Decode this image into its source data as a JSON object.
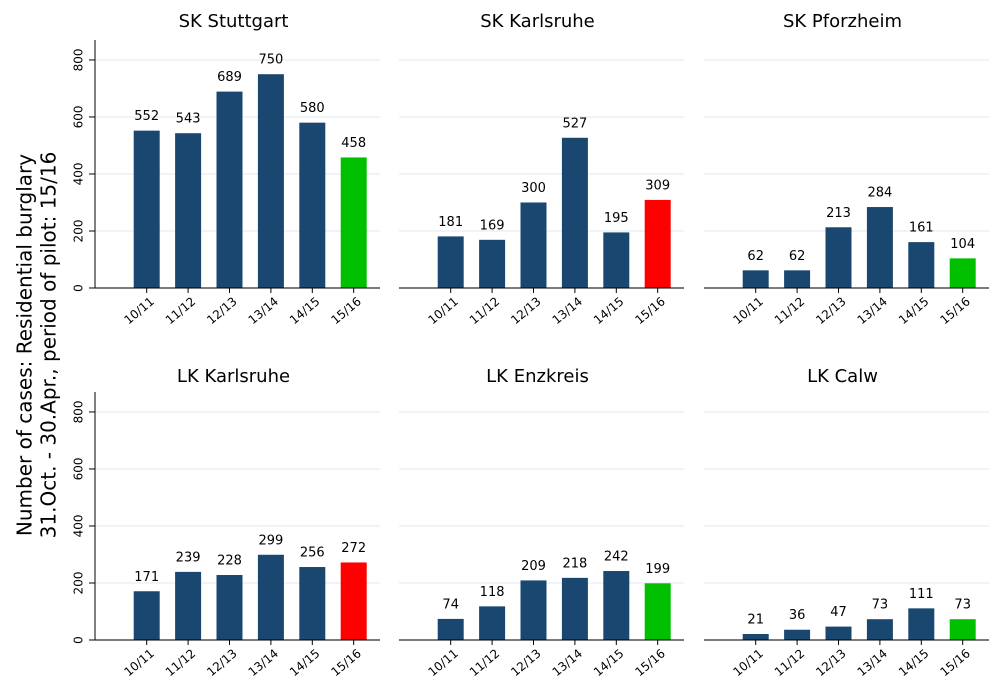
{
  "y_label": [
    "Number of cases: Residential burglary",
    "31.Oct. - 30.Apr., period of pilot: 15/16"
  ],
  "chart_data": [
    {
      "type": "bar",
      "title": "SK Stuttgart",
      "categories": [
        "10/11",
        "11/12",
        "12/13",
        "13/14",
        "14/15",
        "15/16"
      ],
      "values": [
        552,
        543,
        689,
        750,
        580,
        458
      ],
      "colors": [
        "#1a476f",
        "#1a476f",
        "#1a476f",
        "#1a476f",
        "#1a476f",
        "#00c000"
      ],
      "ylim": [
        0,
        870
      ],
      "yticks": [
        0,
        200,
        400,
        600,
        800
      ],
      "ytick_labels": true,
      "grid": true
    },
    {
      "type": "bar",
      "title": "SK Karlsruhe",
      "categories": [
        "10/11",
        "11/12",
        "12/13",
        "13/14",
        "14/15",
        "15/16"
      ],
      "values": [
        181,
        169,
        300,
        527,
        195,
        309
      ],
      "colors": [
        "#1a476f",
        "#1a476f",
        "#1a476f",
        "#1a476f",
        "#1a476f",
        "#ff0000"
      ],
      "ylim": [
        0,
        870
      ],
      "yticks": [
        0,
        200,
        400,
        600,
        800
      ],
      "ytick_labels": false,
      "grid": true
    },
    {
      "type": "bar",
      "title": "SK Pforzheim",
      "categories": [
        "10/11",
        "11/12",
        "12/13",
        "13/14",
        "14/15",
        "15/16"
      ],
      "values": [
        62,
        62,
        213,
        284,
        161,
        104
      ],
      "colors": [
        "#1a476f",
        "#1a476f",
        "#1a476f",
        "#1a476f",
        "#1a476f",
        "#00c000"
      ],
      "ylim": [
        0,
        870
      ],
      "yticks": [
        0,
        200,
        400,
        600,
        800
      ],
      "ytick_labels": false,
      "grid": true
    },
    {
      "type": "bar",
      "title": "LK Karlsruhe",
      "categories": [
        "10/11",
        "11/12",
        "12/13",
        "13/14",
        "14/15",
        "15/16"
      ],
      "values": [
        171,
        239,
        228,
        299,
        256,
        272
      ],
      "colors": [
        "#1a476f",
        "#1a476f",
        "#1a476f",
        "#1a476f",
        "#1a476f",
        "#ff0000"
      ],
      "ylim": [
        0,
        870
      ],
      "yticks": [
        0,
        200,
        400,
        600,
        800
      ],
      "ytick_labels": true,
      "grid": true
    },
    {
      "type": "bar",
      "title": "LK Enzkreis",
      "categories": [
        "10/11",
        "11/12",
        "12/13",
        "13/14",
        "14/15",
        "15/16"
      ],
      "values": [
        74,
        118,
        209,
        218,
        242,
        199
      ],
      "colors": [
        "#1a476f",
        "#1a476f",
        "#1a476f",
        "#1a476f",
        "#1a476f",
        "#00c000"
      ],
      "ylim": [
        0,
        870
      ],
      "yticks": [
        0,
        200,
        400,
        600,
        800
      ],
      "ytick_labels": false,
      "grid": true
    },
    {
      "type": "bar",
      "title": "LK Calw",
      "categories": [
        "10/11",
        "11/12",
        "12/13",
        "13/14",
        "14/15",
        "15/16"
      ],
      "values": [
        21,
        36,
        47,
        73,
        111,
        73
      ],
      "colors": [
        "#1a476f",
        "#1a476f",
        "#1a476f",
        "#1a476f",
        "#1a476f",
        "#00c000"
      ],
      "ylim": [
        0,
        870
      ],
      "yticks": [
        0,
        200,
        400,
        600,
        800
      ],
      "ytick_labels": false,
      "grid": true
    }
  ]
}
